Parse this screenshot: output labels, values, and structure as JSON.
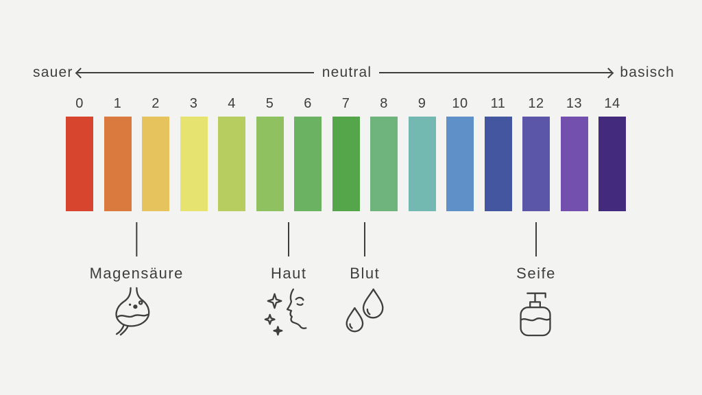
{
  "page": {
    "background": "#f3f4f2",
    "text_color": "#3d3d3d"
  },
  "axis": {
    "left_label": "sauer",
    "center_label": "neutral",
    "right_label": "basisch"
  },
  "scale": {
    "segments": [
      {
        "ph": 0,
        "label": "0",
        "color": "#d7452f"
      },
      {
        "ph": 1,
        "label": "1",
        "color": "#da7a3e"
      },
      {
        "ph": 2,
        "label": "2",
        "color": "#e6c35c"
      },
      {
        "ph": 3,
        "label": "3",
        "color": "#e6e370"
      },
      {
        "ph": 4,
        "label": "4",
        "color": "#b7cd60"
      },
      {
        "ph": 5,
        "label": "5",
        "color": "#90c160"
      },
      {
        "ph": 6,
        "label": "6",
        "color": "#6bb262"
      },
      {
        "ph": 7,
        "label": "7",
        "color": "#55a54b"
      },
      {
        "ph": 8,
        "label": "8",
        "color": "#70b47d"
      },
      {
        "ph": 9,
        "label": "9",
        "color": "#73b8b1"
      },
      {
        "ph": 10,
        "label": "10",
        "color": "#6090c8"
      },
      {
        "ph": 11,
        "label": "11",
        "color": "#44569f"
      },
      {
        "ph": 12,
        "label": "12",
        "color": "#5b56a8"
      },
      {
        "ph": 13,
        "label": "13",
        "color": "#7450ae"
      },
      {
        "ph": 14,
        "label": "14",
        "color": "#432a7d"
      }
    ]
  },
  "annotations": [
    {
      "label": "Magensäure",
      "icon": "stomach-icon",
      "ph": 1.5
    },
    {
      "label": "Haut",
      "icon": "face-sparkle-icon",
      "ph": 5.5
    },
    {
      "label": "Blut",
      "icon": "blood-drops-icon",
      "ph": 7.5
    },
    {
      "label": "Seife",
      "icon": "soap-dispenser-icon",
      "ph": 12
    }
  ]
}
